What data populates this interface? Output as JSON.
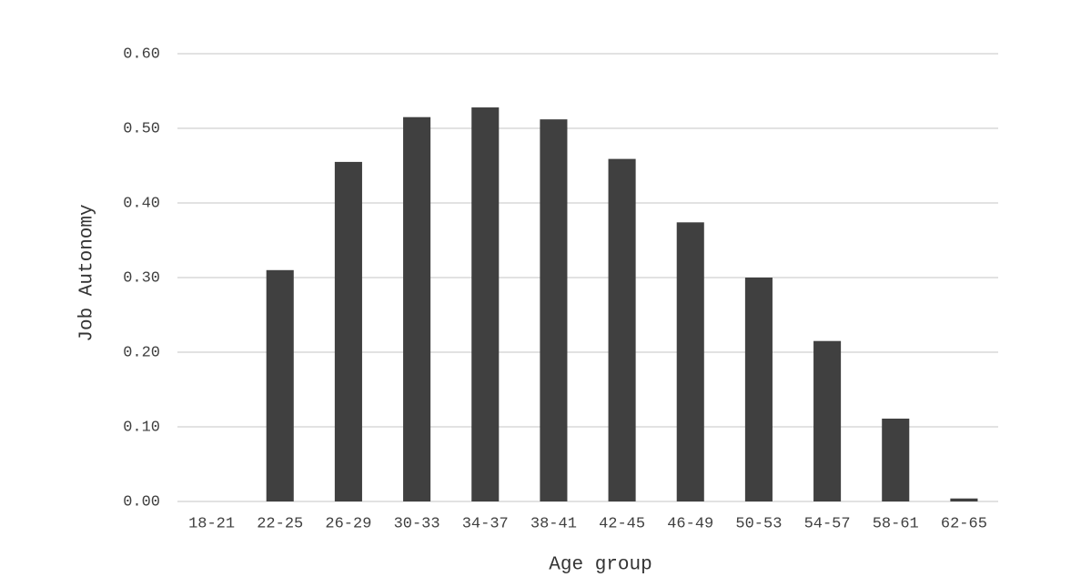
{
  "chart_data": {
    "type": "bar",
    "x_label": "Age group",
    "y_label": "Job Autonomy",
    "categories": [
      "18-21",
      "22-25",
      "26-29",
      "30-33",
      "34-37",
      "38-41",
      "42-45",
      "46-49",
      "50-53",
      "54-57",
      "58-61",
      "62-65"
    ],
    "values": [
      0,
      0.31,
      0.455,
      0.515,
      0.528,
      0.512,
      0.459,
      0.374,
      0.3,
      0.215,
      0.111,
      0.004
    ],
    "color": "#404040",
    "ylim": [
      0,
      0.6
    ],
    "yticks": [
      {
        "value": 0,
        "label": "0.00"
      },
      {
        "value": 0.1,
        "label": "0.10"
      },
      {
        "value": 0.2,
        "label": "0.20"
      },
      {
        "value": 0.3,
        "label": "0.30"
      },
      {
        "value": 0.4,
        "label": "0.40"
      },
      {
        "value": 0.5,
        "label": "0.50"
      },
      {
        "value": 0.6,
        "label": "0.60"
      }
    ],
    "grid": true
  }
}
